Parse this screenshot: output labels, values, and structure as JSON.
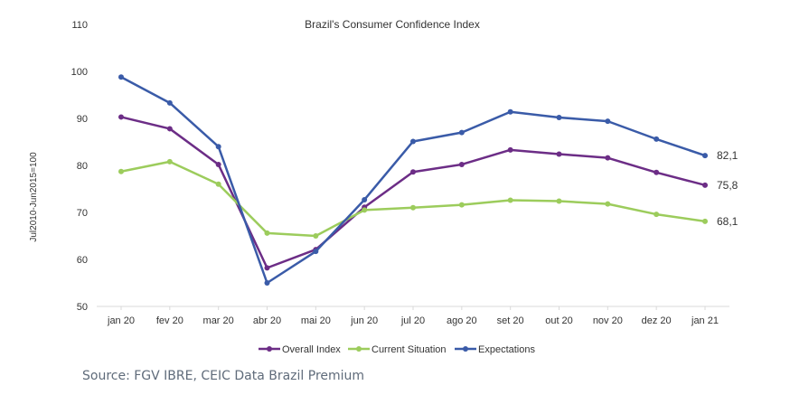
{
  "chart_data": {
    "type": "line",
    "title": "Brazil's Consumer Confidence Index",
    "ylabel": "Jul2010-Jun2015=100",
    "xlabel": "",
    "ylim": [
      50,
      110
    ],
    "yticks": [
      50,
      60,
      70,
      80,
      90,
      100,
      110
    ],
    "categories": [
      "jan 20",
      "fev 20",
      "mar 20",
      "abr 20",
      "mai 20",
      "jun 20",
      "jul 20",
      "ago 20",
      "set 20",
      "out 20",
      "nov 20",
      "dez 20",
      "jan 21"
    ],
    "series": [
      {
        "name": "Overall Index",
        "color": "#6c2d86",
        "values": [
          90.3,
          87.8,
          80.2,
          58.2,
          62.1,
          71.1,
          78.6,
          80.2,
          83.3,
          82.4,
          81.6,
          78.5,
          75.8
        ],
        "end_label": "75,8"
      },
      {
        "name": "Current Situation",
        "color": "#9ccc5c",
        "values": [
          78.7,
          80.8,
          76.0,
          65.6,
          65.0,
          70.5,
          71.0,
          71.6,
          72.6,
          72.4,
          71.8,
          69.6,
          68.1
        ],
        "end_label": "68,1"
      },
      {
        "name": "Expectations",
        "color": "#3a5ba8",
        "values": [
          98.8,
          93.3,
          84.0,
          55.0,
          61.7,
          72.7,
          85.1,
          87.0,
          91.4,
          90.2,
          89.4,
          85.6,
          82.1
        ],
        "end_label": "82,1"
      }
    ],
    "legend_position": "bottom",
    "grid": false
  },
  "source": "Source: FGV IBRE, CEIC Data Brazil Premium"
}
